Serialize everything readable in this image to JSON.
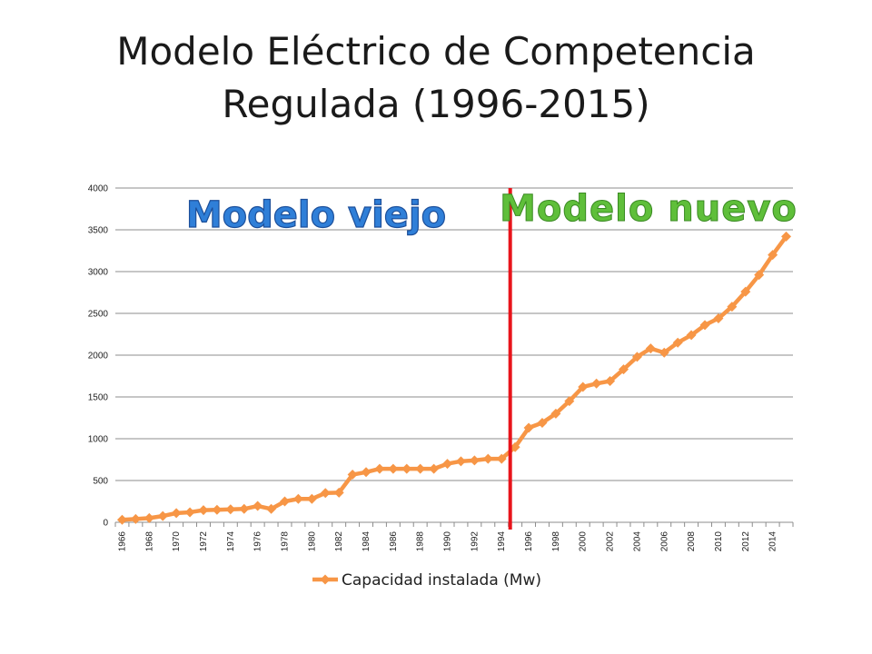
{
  "title": {
    "line1": "Modelo Eléctrico de Competencia",
    "line2": "Regulada (1996-2015)"
  },
  "chart_data": {
    "type": "line",
    "x": [
      1966,
      1967,
      1968,
      1969,
      1970,
      1971,
      1972,
      1973,
      1974,
      1975,
      1976,
      1977,
      1978,
      1979,
      1980,
      1981,
      1982,
      1983,
      1984,
      1985,
      1986,
      1987,
      1988,
      1989,
      1990,
      1991,
      1992,
      1993,
      1994,
      1995,
      1996,
      1997,
      1998,
      1999,
      2000,
      2001,
      2002,
      2003,
      2004,
      2005,
      2006,
      2007,
      2008,
      2009,
      2010,
      2011,
      2012,
      2013,
      2014,
      2015
    ],
    "x_tick_labels": [
      "1966",
      "1968",
      "1970",
      "1972",
      "1974",
      "1976",
      "1978",
      "1980",
      "1982",
      "1984",
      "1986",
      "1988",
      "1990",
      "1992",
      "1994",
      "1996",
      "1998",
      "2000",
      "2002",
      "2004",
      "2006",
      "2008",
      "2010",
      "2012",
      "2014"
    ],
    "series": [
      {
        "name": "Capacidad instalada (Mw)",
        "color": "#f79646",
        "values": [
          30,
          40,
          50,
          75,
          110,
          120,
          145,
          150,
          155,
          160,
          195,
          160,
          250,
          280,
          280,
          350,
          355,
          570,
          600,
          640,
          640,
          640,
          640,
          640,
          700,
          730,
          740,
          760,
          760,
          900,
          1130,
          1190,
          1300,
          1450,
          1620,
          1660,
          1690,
          1830,
          1980,
          2080,
          2030,
          2150,
          2240,
          2360,
          2440,
          2580,
          2760,
          2960,
          3200,
          3420
        ]
      }
    ],
    "ylim": [
      0,
      4000
    ],
    "y_ticks": [
      0,
      500,
      1000,
      1500,
      2000,
      2500,
      3000,
      3500,
      4000
    ],
    "grid": true,
    "legend_position": "bottom",
    "annotations": {
      "old_model": "Modelo viejo",
      "new_model": "Modelo nuevo",
      "divider_year": 1995,
      "divider_color": "#e8141b",
      "old_color": "#2f7fd8",
      "new_color": "#5fbf3a"
    }
  }
}
